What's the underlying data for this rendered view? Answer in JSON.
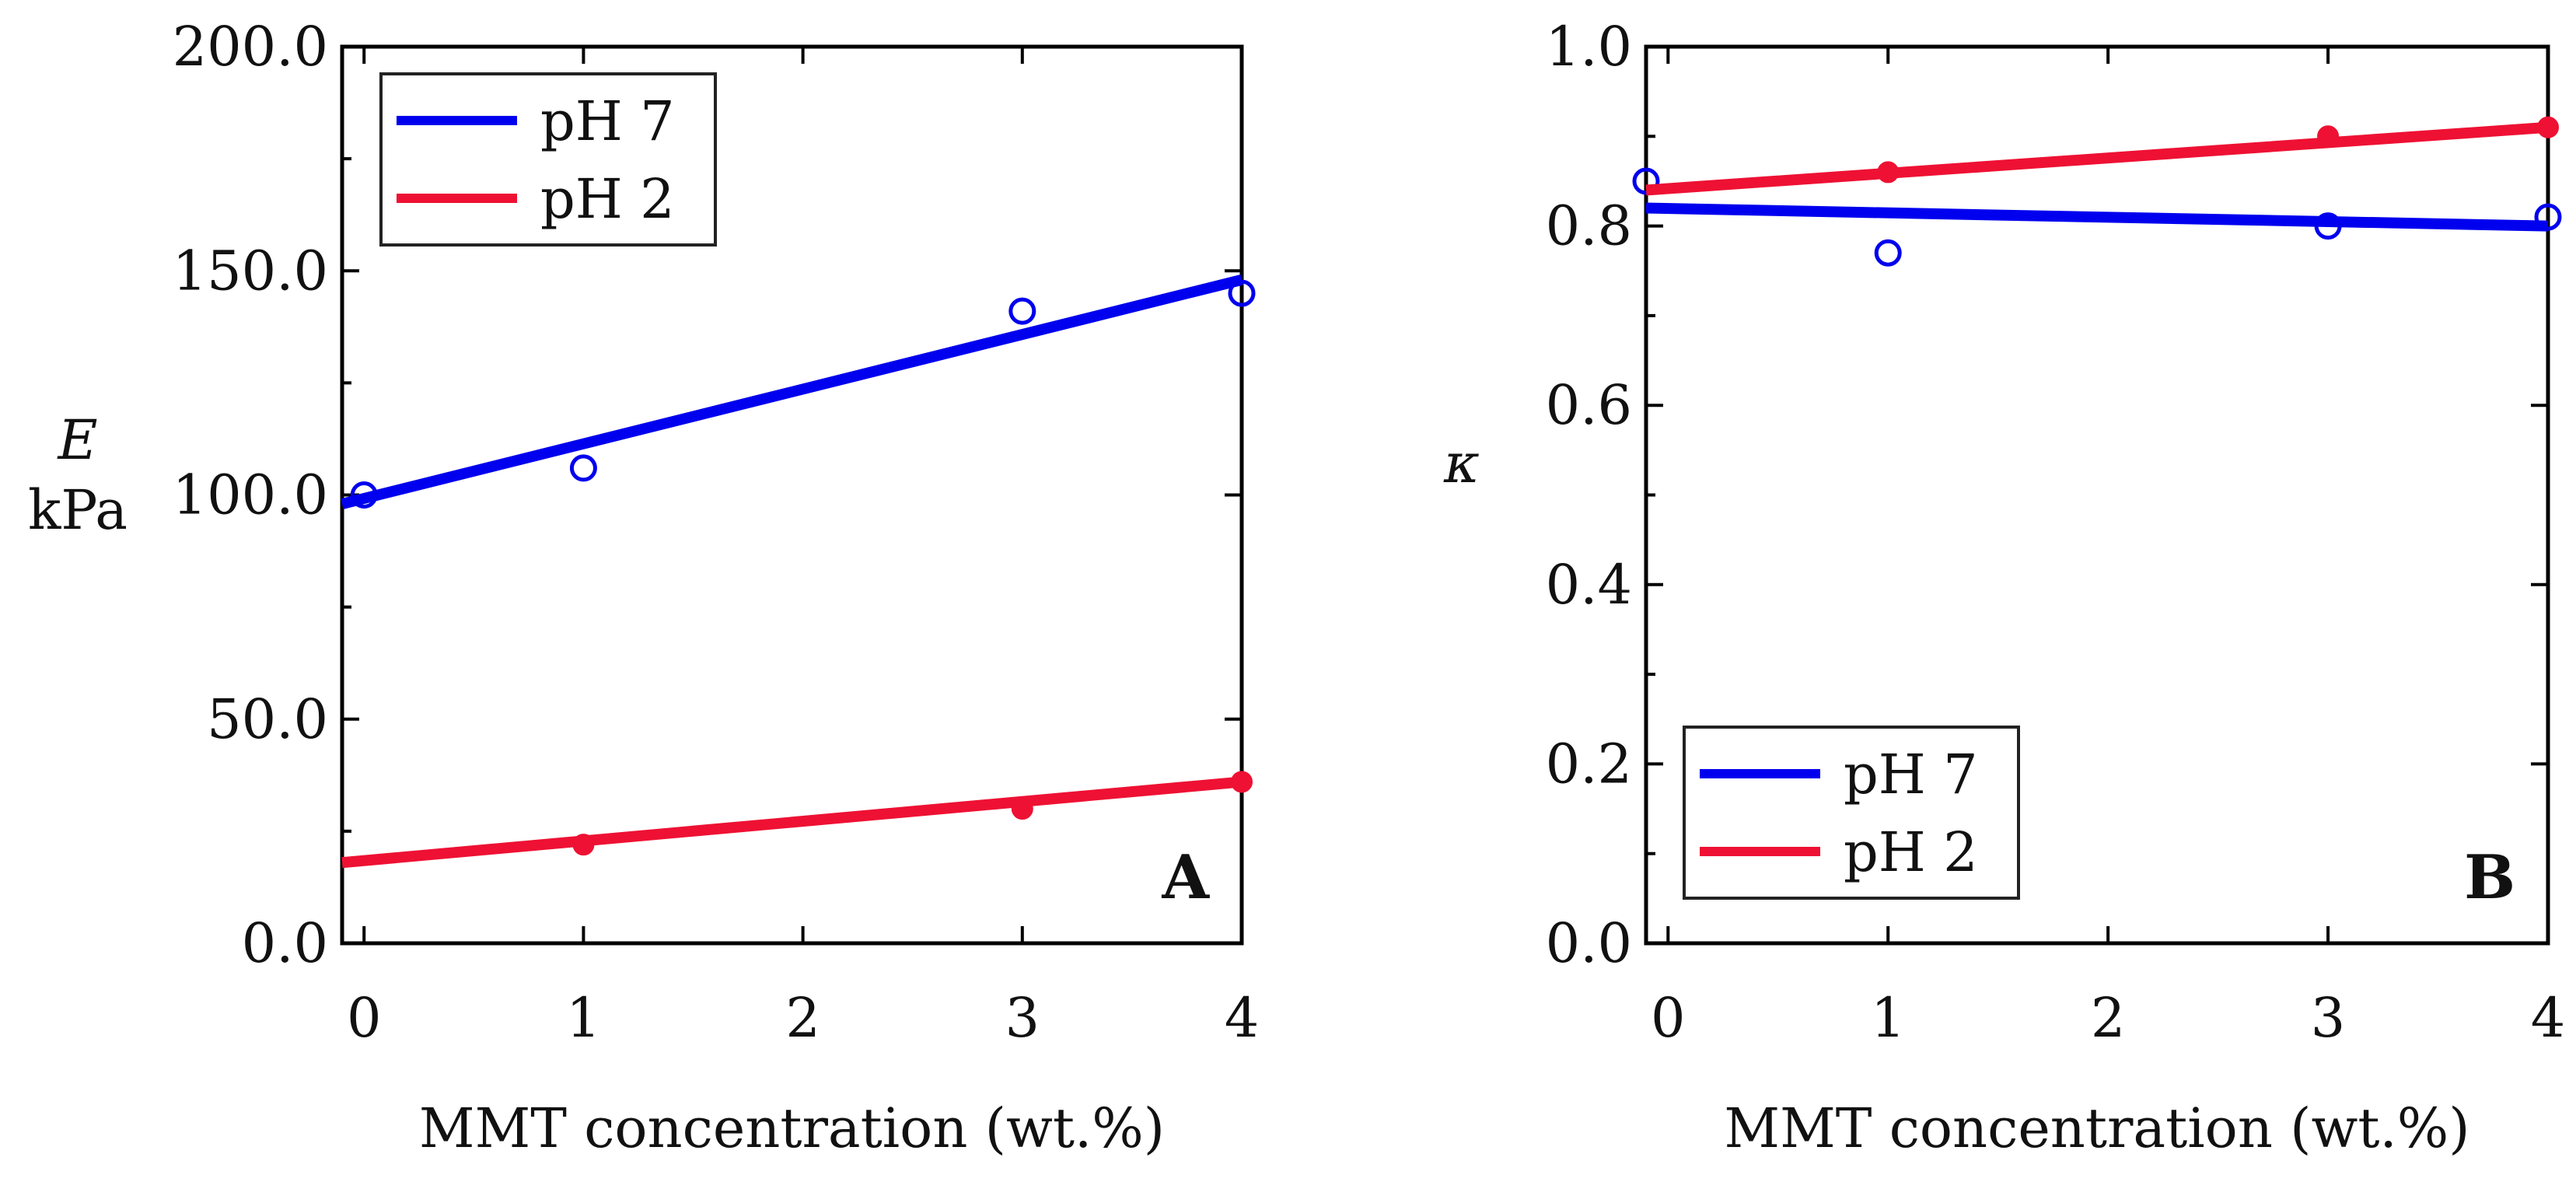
{
  "chart_data": [
    {
      "type": "line",
      "panel": "A",
      "xlabel": "MMT concentration (wt.%)",
      "ylabel": "E",
      "ylabel_unit": "kPa",
      "xlim": [
        -0.1,
        4.0
      ],
      "ylim": [
        0.0,
        200.0
      ],
      "xticks": [
        0,
        1,
        2,
        3,
        4
      ],
      "xtick_labels": [
        "0",
        "1",
        "2",
        "3",
        "4"
      ],
      "yticks": [
        0,
        50,
        100,
        150,
        200
      ],
      "ytick_labels": [
        "0.0",
        "50.0",
        "100.0",
        "150.0",
        "200.0"
      ],
      "minor_yticks": [
        25,
        75,
        125,
        175
      ],
      "legend_position": "top-left",
      "series": [
        {
          "name": "pH 7",
          "color": "#0000ee",
          "marker": "open-circle",
          "points": [
            [
              0,
              100
            ],
            [
              1,
              106
            ],
            [
              3,
              141
            ],
            [
              4,
              145
            ]
          ],
          "fit": [
            [
              -0.1,
              98
            ],
            [
              4.0,
              148
            ]
          ]
        },
        {
          "name": "pH 2",
          "color": "#ee1133",
          "marker": "filled-circle",
          "points": [
            [
              1,
              22
            ],
            [
              3,
              30
            ],
            [
              4,
              36
            ]
          ],
          "fit": [
            [
              -0.1,
              18
            ],
            [
              4.0,
              36
            ]
          ]
        }
      ]
    },
    {
      "type": "line",
      "panel": "B",
      "xlabel": "MMT concentration (wt.%)",
      "ylabel": "κ",
      "xlim": [
        -0.1,
        4.0
      ],
      "ylim": [
        0.0,
        1.0
      ],
      "xticks": [
        0,
        1,
        2,
        3,
        4
      ],
      "xtick_labels": [
        "0",
        "1",
        "2",
        "3",
        "4"
      ],
      "yticks": [
        0.0,
        0.2,
        0.4,
        0.6,
        0.8,
        1.0
      ],
      "ytick_labels": [
        "0.0",
        "0.2",
        "0.4",
        "0.6",
        "0.8",
        "1.0"
      ],
      "minor_yticks": [
        0.1,
        0.3,
        0.5,
        0.7,
        0.9
      ],
      "legend_position": "bottom-left",
      "series": [
        {
          "name": "pH 7",
          "color": "#0000ee",
          "marker": "open-circle",
          "points": [
            [
              -0.1,
              0.85
            ],
            [
              1,
              0.77
            ],
            [
              3,
              0.8
            ],
            [
              4,
              0.81
            ]
          ],
          "fit": [
            [
              -0.1,
              0.82
            ],
            [
              4.0,
              0.8
            ]
          ]
        },
        {
          "name": "pH 2",
          "color": "#ee1133",
          "marker": "filled-circle",
          "points": [
            [
              1,
              0.86
            ],
            [
              3,
              0.9
            ],
            [
              4,
              0.91
            ]
          ],
          "fit": [
            [
              -0.1,
              0.84
            ],
            [
              4.0,
              0.91
            ]
          ]
        }
      ]
    }
  ]
}
